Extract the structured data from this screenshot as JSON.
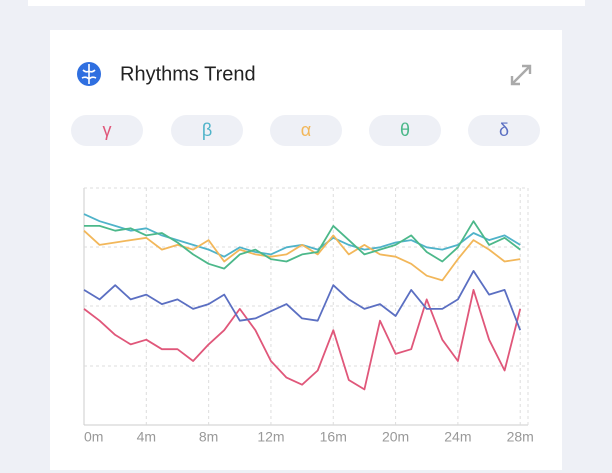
{
  "chart_data": {
    "type": "line",
    "title": "Rhythms Trend",
    "x": [
      0,
      1,
      2,
      3,
      4,
      5,
      6,
      7,
      8,
      9,
      10,
      11,
      12,
      13,
      14,
      15,
      16,
      17,
      18,
      19,
      20,
      21,
      22,
      23,
      24,
      25,
      26,
      27,
      28
    ],
    "xlim": [
      0,
      28.5
    ],
    "xticks": [
      {
        "value": 0,
        "label": "0m"
      },
      {
        "value": 4,
        "label": "4m"
      },
      {
        "value": 8,
        "label": "8m"
      },
      {
        "value": 12,
        "label": "12m"
      },
      {
        "value": 16,
        "label": "16m"
      },
      {
        "value": 20,
        "label": "20m"
      },
      {
        "value": 24,
        "label": "24m"
      },
      {
        "value": 28,
        "label": "28m"
      }
    ],
    "ylim": [
      0,
      100
    ],
    "grid": true,
    "series": [
      {
        "name": "γ",
        "color": "#e0577a",
        "values": [
          49,
          44,
          38,
          34,
          36,
          32,
          32,
          27,
          34,
          40,
          49,
          40,
          27,
          20,
          17,
          23,
          40,
          19,
          15,
          44,
          30,
          32,
          53,
          36,
          27,
          57,
          36,
          23,
          49
        ]
      },
      {
        "name": "β",
        "color": "#4fb3c9",
        "values": [
          89,
          86,
          84,
          82,
          83,
          80,
          78,
          76,
          74,
          71,
          75,
          73,
          72,
          75,
          76,
          74,
          79,
          76,
          74,
          75,
          77,
          78,
          75,
          74,
          76,
          81,
          78,
          80,
          76
        ]
      },
      {
        "name": "α",
        "color": "#f2b75a",
        "values": [
          82,
          76,
          77,
          78,
          79,
          74,
          76,
          74,
          78,
          69,
          74,
          72,
          71,
          72,
          76,
          72,
          80,
          72,
          76,
          72,
          71,
          68,
          63,
          61,
          70,
          78,
          74,
          69,
          70
        ]
      },
      {
        "name": "θ",
        "color": "#4cb88a",
        "values": [
          84,
          84,
          82,
          83,
          80,
          81,
          77,
          72,
          68,
          66,
          72,
          74,
          70,
          69,
          72,
          73,
          84,
          78,
          72,
          74,
          76,
          80,
          73,
          69,
          75,
          86,
          76,
          79,
          74
        ]
      },
      {
        "name": "δ",
        "color": "#5b6fc2",
        "values": [
          57,
          53,
          59,
          53,
          55,
          51,
          53,
          49,
          51,
          55,
          44,
          45,
          48,
          51,
          45,
          44,
          59,
          53,
          49,
          51,
          46,
          57,
          49,
          49,
          53,
          65,
          55,
          57,
          40
        ]
      }
    ]
  }
}
